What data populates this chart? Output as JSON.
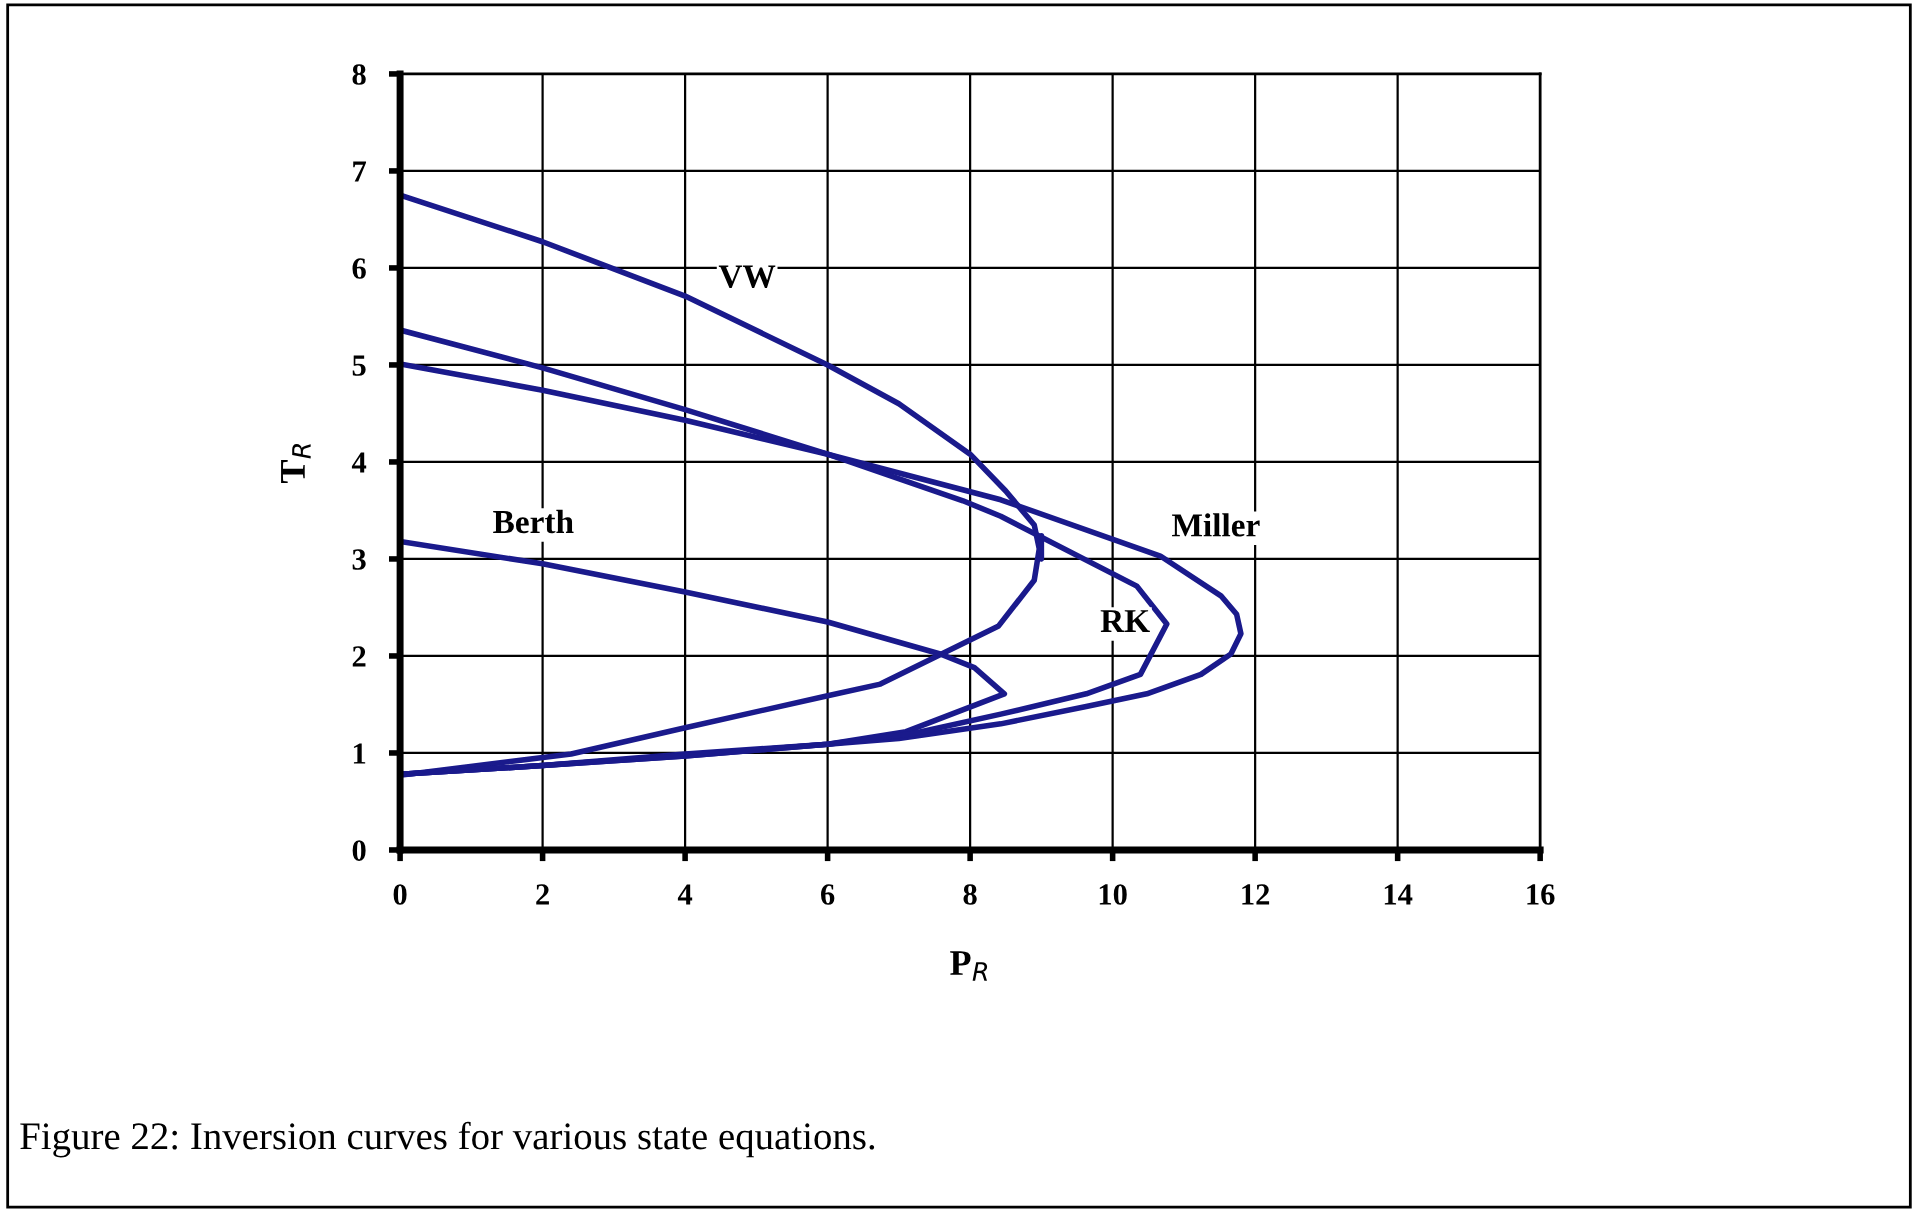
{
  "chart_data": {
    "type": "line",
    "xlabel": "P$_{R}$",
    "ylabel": "T$_{R}$",
    "xlim": [
      0,
      16
    ],
    "xticks": [
      0,
      2,
      4,
      6,
      8,
      10,
      12,
      14,
      16
    ],
    "ylim": [
      0,
      8
    ],
    "yticks": [
      0,
      1,
      2,
      3,
      4,
      5,
      6,
      7,
      8
    ],
    "grid": true,
    "legend": false,
    "marker": "none",
    "line_style": "solid",
    "series": [
      {
        "name": "VW",
        "color": "#1a1a8c",
        "x": [
          0,
          2,
          4,
          6,
          7,
          8,
          8.5,
          8.9,
          9.0,
          9.0,
          8.9,
          8.4,
          6.74,
          6.0,
          4.0,
          2.4,
          0
        ],
        "values": [
          6.75,
          6.27,
          5.71,
          5.0,
          4.6,
          4.08,
          3.7,
          3.35,
          3.0,
          3.24,
          2.78,
          2.31,
          1.71,
          1.59,
          1.26,
          0.99,
          0.77
        ]
      },
      {
        "name": "Berth",
        "color": "#1a1a8c",
        "x": [
          0,
          2,
          4,
          6,
          7.58,
          8.06,
          8.48,
          7.1,
          6.0,
          4.0,
          2.0,
          0
        ],
        "values": [
          3.18,
          2.95,
          2.66,
          2.35,
          2.02,
          1.88,
          1.61,
          1.22,
          1.09,
          0.99,
          0.87,
          0.78
        ]
      },
      {
        "name": "Miller",
        "color": "#1a1a8c",
        "x": [
          0,
          2,
          4,
          6,
          8.43,
          10.67,
          11.52,
          11.74,
          11.8,
          11.66,
          11.24,
          10.48,
          9.63,
          8.43,
          7.0,
          6.0,
          4.0,
          2.0,
          0
        ],
        "values": [
          5.01,
          4.74,
          4.43,
          4.08,
          3.61,
          3.03,
          2.62,
          2.43,
          2.23,
          2.02,
          1.81,
          1.61,
          1.48,
          1.3,
          1.15,
          1.09,
          0.97,
          0.87,
          0.78
        ]
      },
      {
        "name": "RK",
        "color": "#1a1a8c",
        "x": [
          0,
          2,
          4,
          6,
          7.9,
          8.43,
          10.34,
          10.76,
          10.39,
          9.63,
          8.43,
          7.2,
          6.0,
          4.0,
          2.0,
          0
        ],
        "values": [
          5.36,
          4.97,
          4.54,
          4.08,
          3.6,
          3.44,
          2.72,
          2.33,
          1.81,
          1.61,
          1.4,
          1.2,
          1.09,
          0.97,
          0.87,
          0.78
        ]
      }
    ],
    "annotations": [
      "Figure 22: Inversion curves for various state equations."
    ]
  }
}
